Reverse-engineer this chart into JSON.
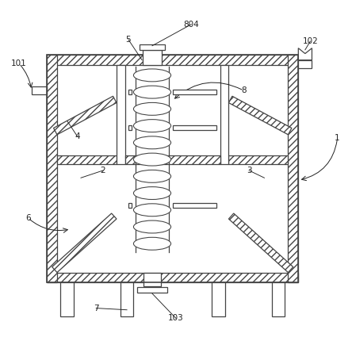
{
  "bg_color": "#ffffff",
  "lc": "#444444",
  "wall_t": 0.03,
  "bx": 0.12,
  "by": 0.17,
  "bw": 0.74,
  "bh": 0.67
}
